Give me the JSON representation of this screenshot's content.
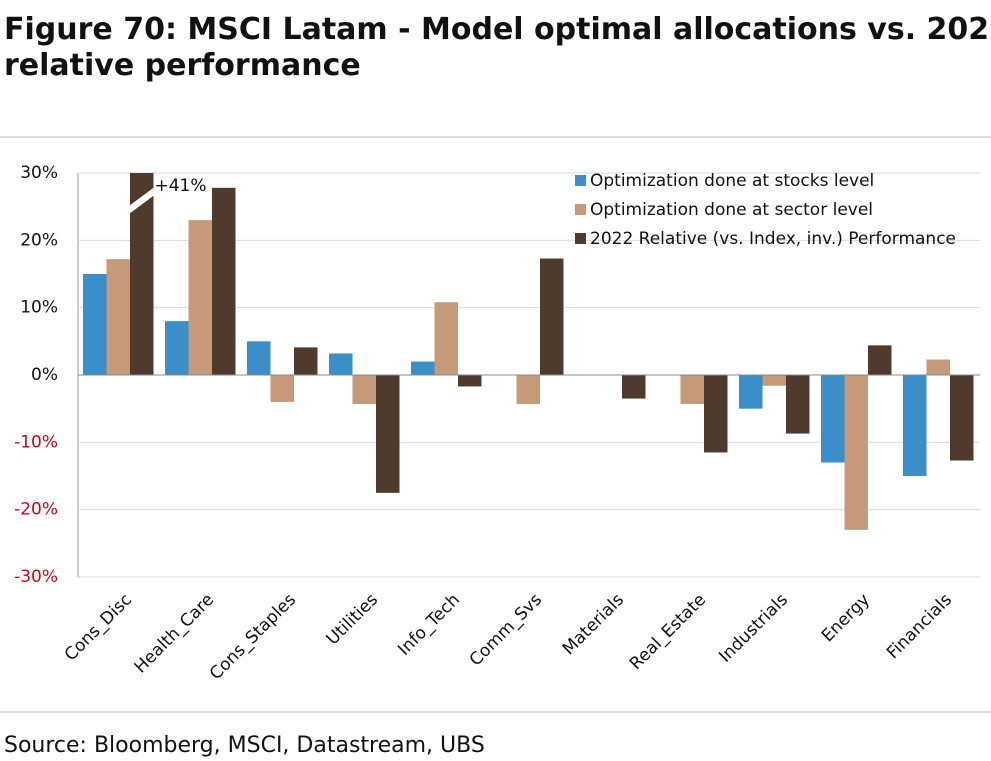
{
  "chart_data": {
    "type": "bar",
    "title": "Figure 70: MSCI Latam - Model optimal allocations vs. 2022 relative performance",
    "categories": [
      "Cons_Disc",
      "Health_Care",
      "Cons_Staples",
      "Utilities",
      "Info_Tech",
      "Comm_Svs",
      "Materials",
      "Real_Estate",
      "Industrials",
      "Energy",
      "Financials"
    ],
    "series": [
      {
        "name": "Optimization done at stocks level",
        "color": "#3a8fc9",
        "values": [
          15,
          8,
          5,
          3.2,
          2,
          0,
          0,
          0,
          -5,
          -13,
          -15
        ]
      },
      {
        "name": "Optimization done at sector level",
        "color": "#c49a78",
        "values": [
          17.2,
          23,
          -4,
          -4.3,
          10.8,
          -4.3,
          0,
          -4.3,
          -1.6,
          -23,
          2.3
        ]
      },
      {
        "name": "2022 Relative (vs. Index, inv.) Performance",
        "color": "#4e3b2e",
        "values": [
          41,
          27.8,
          4.1,
          -17.5,
          -1.7,
          17.3,
          -3.5,
          -11.5,
          -8.7,
          4.4,
          -12.7
        ],
        "value_labels": [
          "+41%",
          null,
          null,
          null,
          null,
          null,
          null,
          null,
          null,
          null,
          null
        ]
      }
    ],
    "ylim": [
      -30,
      30
    ],
    "yticks": [
      {
        "value": -30,
        "label": "-30%"
      },
      {
        "value": -20,
        "label": "-20%"
      },
      {
        "value": -10,
        "label": "-10%"
      },
      {
        "value": 0,
        "label": "0%"
      },
      {
        "value": 10,
        "label": "10%"
      },
      {
        "value": 20,
        "label": "20%"
      },
      {
        "value": 30,
        "label": "30%"
      }
    ],
    "negative_tick_color": "#d0021b",
    "grid": true,
    "legend": "top-right",
    "source": "Source: Bloomberg, MSCI, Datastream, UBS"
  }
}
